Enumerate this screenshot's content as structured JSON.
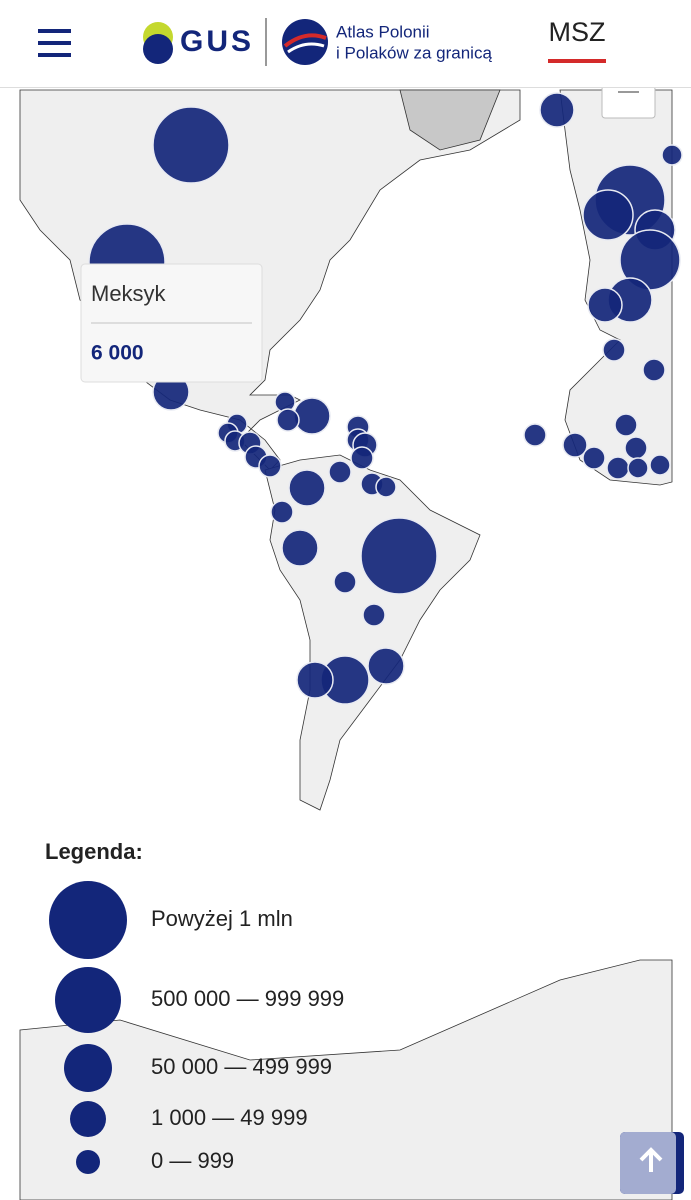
{
  "header": {
    "logo_text": "GUS",
    "atlas_line1": "Atlas Polonii",
    "atlas_line2": "i Polaków za granicą",
    "ministry": "MSZ"
  },
  "tooltip": {
    "country": "Meksyk",
    "value": "6 000"
  },
  "legend": {
    "title": "Legenda:",
    "items": [
      "Powyżej 1 mln",
      "500 000 — 999 999",
      "50 000 — 499 999",
      "1 000 — 49 999",
      "0 — 999"
    ]
  }
}
